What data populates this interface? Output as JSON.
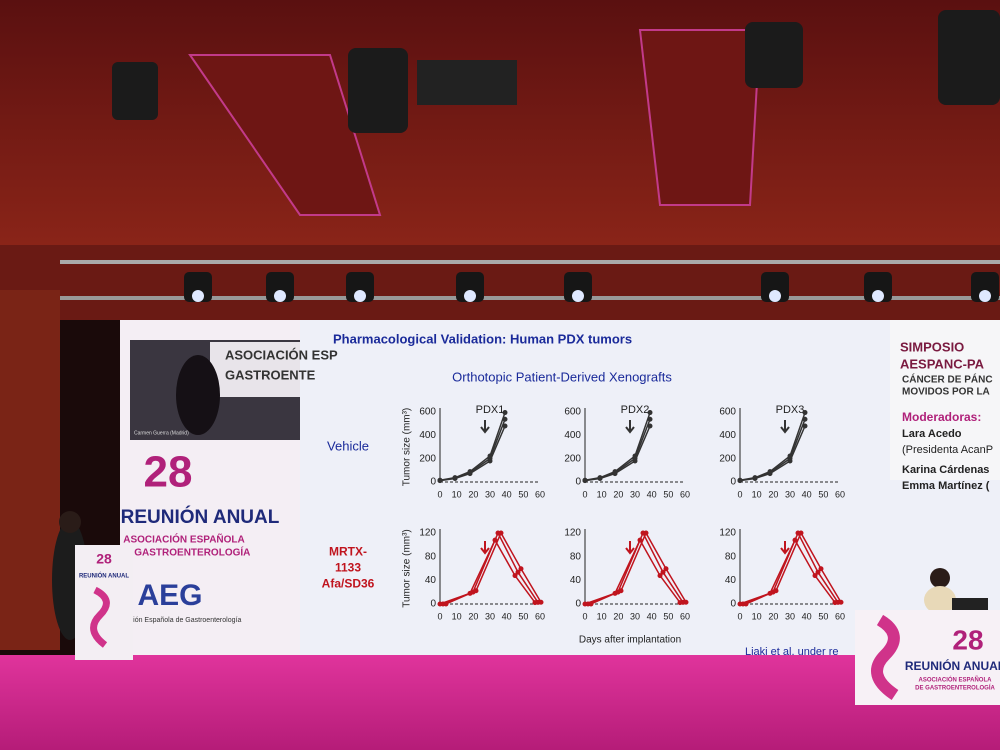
{
  "screen": {
    "sidebar": {
      "video_backdrop": [
        "ASOCIACIÓN ESP",
        "GASTROENTE"
      ],
      "video_caption": "Carmen Guerra (Madrid)",
      "number": "28",
      "event": "REUNIÓN ANUAL",
      "association": [
        "ASOCIACIÓN ESPAÑOLA",
        "DE GASTROENTEROLOGÍA"
      ],
      "logo": "AEG",
      "logo_caption": "Asociación Española de Gastroenterología"
    },
    "slide": {
      "title": "Pharmacological Validation: Human PDX tumors",
      "subtitle": "Orthotopic Patient-Derived Xenografts",
      "row_labels": [
        [
          "Vehicle"
        ],
        [
          "MRTX-",
          "1133",
          "Afa/SD36"
        ]
      ],
      "panel_titles": [
        "PDX1",
        "PDX2",
        "PDX3"
      ],
      "rows": [
        {
          "yticks": [
            0,
            200,
            400,
            600
          ],
          "xticks": [
            0,
            10,
            20,
            30,
            40,
            50,
            60
          ]
        },
        {
          "yticks": [
            0,
            40,
            80,
            120
          ],
          "xticks": [
            0,
            10,
            20,
            30,
            40,
            50,
            60
          ]
        }
      ],
      "y_label": "Tumor size (mm³)",
      "x_label": "Days after implantation",
      "citation": "Liaki et al. under re"
    },
    "program": {
      "heading": [
        "SIMPOSIO",
        "AESPANC-PA"
      ],
      "topic": [
        "CÁNCER DE PÁNC",
        "MOVIDOS POR LA"
      ],
      "moderators_label": "Moderadoras:",
      "moderators": [
        "Lara Acedo",
        "(Presidenta AcanP",
        "Karina Cárdenas",
        "Emma Martínez ("
      ]
    }
  },
  "stage_banner": {
    "number": "28",
    "event": "REUNIÓN ANUAL",
    "association": [
      "ASOCIACIÓN ESPAÑOLA",
      "DE GASTROENTEROLOGÍA"
    ]
  }
}
